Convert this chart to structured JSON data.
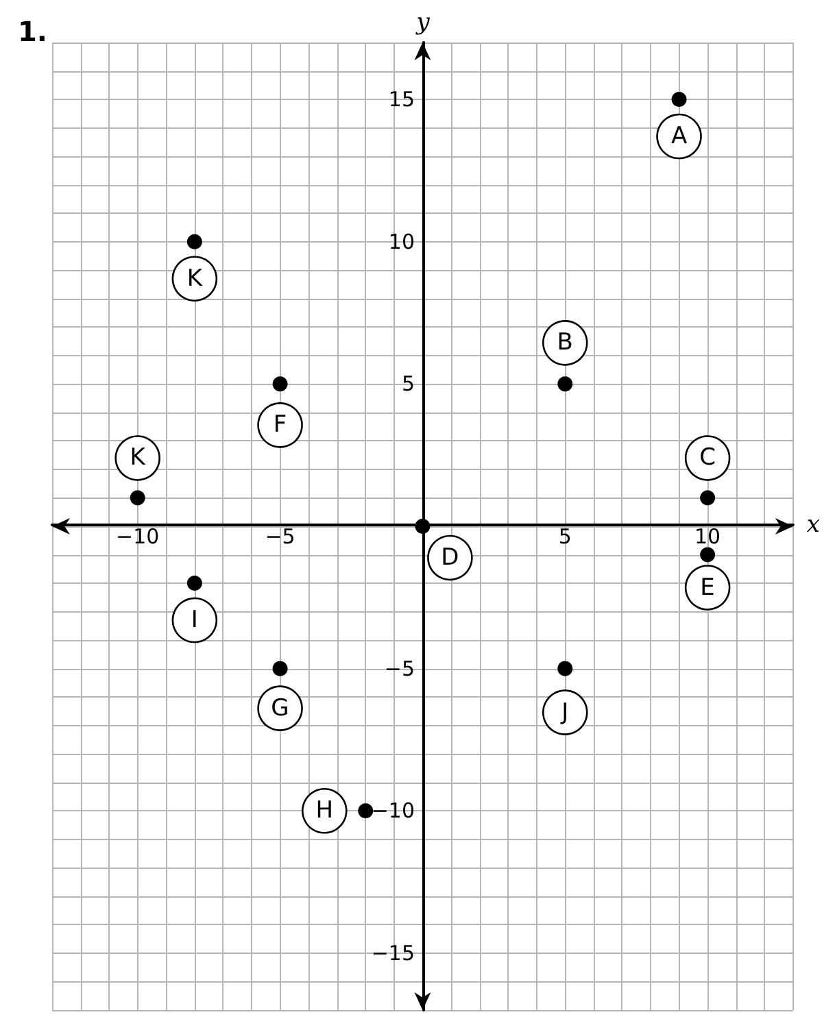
{
  "chart_data": {
    "type": "scatter",
    "title": "1.",
    "xlabel": "x",
    "ylabel": "y",
    "marker": "circle",
    "grid": true,
    "xlim": [
      -13,
      13
    ],
    "ylim": [
      -17,
      17
    ],
    "xticks": [
      {
        "value": -13,
        "label": null
      },
      {
        "value": -12,
        "label": null
      },
      {
        "value": -11,
        "label": null
      },
      {
        "value": -10,
        "label": "−10"
      },
      {
        "value": -9,
        "label": null
      },
      {
        "value": -8,
        "label": null
      },
      {
        "value": -7,
        "label": null
      },
      {
        "value": -6,
        "label": null
      },
      {
        "value": -5,
        "label": "−5"
      },
      {
        "value": -4,
        "label": null
      },
      {
        "value": -3,
        "label": null
      },
      {
        "value": -2,
        "label": null
      },
      {
        "value": -1,
        "label": null
      },
      {
        "value": 0,
        "label": null
      },
      {
        "value": 1,
        "label": null
      },
      {
        "value": 2,
        "label": null
      },
      {
        "value": 3,
        "label": null
      },
      {
        "value": 4,
        "label": null
      },
      {
        "value": 5,
        "label": "5"
      },
      {
        "value": 6,
        "label": null
      },
      {
        "value": 7,
        "label": null
      },
      {
        "value": 8,
        "label": null
      },
      {
        "value": 9,
        "label": null
      },
      {
        "value": 10,
        "label": "10"
      },
      {
        "value": 11,
        "label": null
      },
      {
        "value": 12,
        "label": null
      },
      {
        "value": 13,
        "label": null
      }
    ],
    "yticks": [
      {
        "value": -17,
        "label": null
      },
      {
        "value": -16,
        "label": null
      },
      {
        "value": -15,
        "label": "−15"
      },
      {
        "value": -14,
        "label": null
      },
      {
        "value": -13,
        "label": null
      },
      {
        "value": -12,
        "label": null
      },
      {
        "value": -11,
        "label": null
      },
      {
        "value": -10,
        "label": "−10"
      },
      {
        "value": -9,
        "label": null
      },
      {
        "value": -8,
        "label": null
      },
      {
        "value": -7,
        "label": null
      },
      {
        "value": -6,
        "label": null
      },
      {
        "value": -5,
        "label": "−5"
      },
      {
        "value": -4,
        "label": null
      },
      {
        "value": -3,
        "label": null
      },
      {
        "value": -2,
        "label": null
      },
      {
        "value": -1,
        "label": null
      },
      {
        "value": 0,
        "label": null
      },
      {
        "value": 1,
        "label": null
      },
      {
        "value": 2,
        "label": null
      },
      {
        "value": 3,
        "label": null
      },
      {
        "value": 4,
        "label": null
      },
      {
        "value": 5,
        "label": "5"
      },
      {
        "value": 6,
        "label": null
      },
      {
        "value": 7,
        "label": null
      },
      {
        "value": 8,
        "label": null
      },
      {
        "value": 9,
        "label": null
      },
      {
        "value": 10,
        "label": "10"
      },
      {
        "value": 11,
        "label": null
      },
      {
        "value": 12,
        "label": null
      },
      {
        "value": 13,
        "label": null
      },
      {
        "value": 14,
        "label": null
      },
      {
        "value": 15,
        "label": "15"
      },
      {
        "value": 16,
        "label": null
      },
      {
        "value": 17,
        "label": null
      }
    ],
    "series": [
      {
        "color": "#000000",
        "x": [
          9,
          -8,
          -5,
          -10,
          5,
          10,
          0,
          10,
          -8,
          -5,
          5,
          -2
        ],
        "values": [
          15,
          10,
          5,
          1,
          5,
          1,
          0,
          -1,
          -2,
          -5,
          -5,
          -10
        ]
      }
    ],
    "annotations": [
      {
        "text": "A",
        "x": 9,
        "y": 15
      },
      {
        "text": "K",
        "x": -8,
        "y": 10
      },
      {
        "text": "F",
        "x": -5,
        "y": 5
      },
      {
        "text": "K",
        "x": -10,
        "y": 1
      },
      {
        "text": "B",
        "x": 5,
        "y": 5
      },
      {
        "text": "C",
        "x": 10,
        "y": 1
      },
      {
        "text": "D",
        "x": 0,
        "y": 0
      },
      {
        "text": "E",
        "x": 10,
        "y": -1
      },
      {
        "text": "I",
        "x": -8,
        "y": -2
      },
      {
        "text": "G",
        "x": -5,
        "y": -5
      },
      {
        "text": "J",
        "x": 5,
        "y": -5
      },
      {
        "text": "H",
        "x": -2,
        "y": -10
      }
    ]
  }
}
